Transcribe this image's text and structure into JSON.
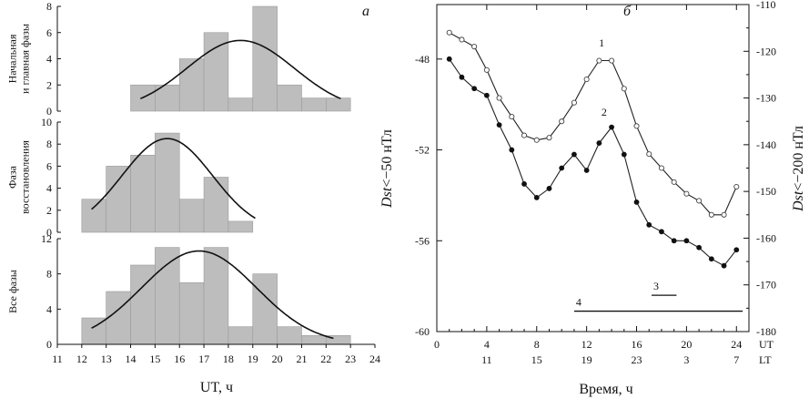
{
  "chart_data": [
    {
      "type": "bar",
      "id": "hist_main",
      "ylabel_lines": [
        "Начальная",
        "и главная фазы"
      ],
      "yticks": [
        0,
        2,
        4,
        6,
        8
      ],
      "ylim": [
        0,
        8
      ],
      "bins_start": [
        14,
        15,
        16,
        17,
        18,
        19,
        20,
        21,
        22
      ],
      "values": [
        2,
        2,
        4,
        6,
        1,
        8,
        2,
        1,
        1
      ],
      "fit_curve": {
        "mean": 18.5,
        "peak": 5.4,
        "sigma": 2.2,
        "x_range": [
          14.4,
          22.6
        ]
      },
      "panel_label": "а"
    },
    {
      "type": "bar",
      "id": "hist_recovery",
      "ylabel_lines": [
        "Фаза",
        "восстановления"
      ],
      "yticks": [
        0,
        2,
        4,
        6,
        8,
        10
      ],
      "ylim": [
        0,
        10
      ],
      "bins_start": [
        12,
        13,
        14,
        15,
        16,
        17,
        18
      ],
      "values": [
        3,
        6,
        7,
        9,
        3,
        5,
        1
      ],
      "fit_curve": {
        "mean": 15.5,
        "peak": 8.5,
        "sigma": 1.85,
        "x_range": [
          12.4,
          19.1
        ]
      }
    },
    {
      "type": "bar",
      "id": "hist_all",
      "ylabel_lines": [
        "Все фазы"
      ],
      "yticks": [
        0,
        4,
        8,
        12
      ],
      "ylim": [
        0,
        12
      ],
      "bins_start": [
        12,
        13,
        14,
        15,
        16,
        17,
        18,
        19,
        20,
        21,
        22
      ],
      "values": [
        3,
        6,
        9,
        11,
        7,
        11,
        2,
        8,
        2,
        1,
        1
      ],
      "fit_curve": {
        "mean": 16.8,
        "peak": 10.6,
        "sigma": 2.35,
        "x_range": [
          12.4,
          22.3
        ]
      },
      "xlabel": "UT, ч",
      "xticks": [
        11,
        12,
        13,
        14,
        15,
        16,
        17,
        18,
        19,
        20,
        21,
        22,
        23,
        24
      ],
      "xlim": [
        11,
        24
      ]
    },
    {
      "type": "line",
      "id": "dst_plot",
      "panel_label": "б",
      "xlim": [
        0,
        25
      ],
      "xticks_ut": [
        0,
        4,
        8,
        12,
        16,
        20,
        24
      ],
      "xticks_lt": [
        "11",
        "15",
        "19",
        "23",
        "3",
        "7"
      ],
      "xticks_lt_pos": [
        4,
        8,
        12,
        16,
        20,
        24
      ],
      "ut_label": "UT",
      "lt_label": "LT",
      "xlabel": "Время, ч",
      "left_axis": {
        "label": "Dst<−50 нТл",
        "label_em": "Dst",
        "label_rest": "<−50 нТл",
        "ticks": [
          -48,
          -52,
          -56,
          -60
        ],
        "ylim": [
          -60,
          -45.6
        ]
      },
      "right_axis": {
        "label": "Dst<−200 нТл",
        "label_em": "Dst",
        "label_rest": "<−200 нТл",
        "ticks": [
          -110,
          -120,
          -130,
          -140,
          -150,
          -160,
          -170,
          -180
        ],
        "ylim": [
          -180,
          -110
        ]
      },
      "series": [
        {
          "name": "1",
          "marker": "open",
          "axis": "right",
          "x": [
            1,
            2,
            3,
            4,
            5,
            6,
            7,
            8,
            9,
            10,
            11,
            12,
            13,
            14,
            15,
            16,
            17,
            18,
            19,
            20,
            21,
            22,
            23,
            24
          ],
          "values": [
            -116,
            -117.5,
            -119,
            -124,
            -130,
            -134,
            -138,
            -139,
            -138.5,
            -135,
            -131,
            -126,
            -122,
            -122,
            -128,
            -136,
            -142,
            -145,
            -148,
            -150.5,
            -152,
            -155,
            -155,
            -149
          ]
        },
        {
          "name": "2",
          "marker": "filled",
          "axis": "left",
          "x": [
            1,
            2,
            3,
            4,
            5,
            6,
            7,
            8,
            9,
            10,
            11,
            12,
            13,
            14,
            15,
            16,
            17,
            18,
            19,
            20,
            21,
            22,
            23,
            24
          ],
          "values": [
            -48.0,
            -48.8,
            -49.3,
            -49.6,
            -50.9,
            -52.0,
            -53.5,
            -54.1,
            -53.7,
            -52.8,
            -52.2,
            -52.9,
            -51.7,
            -51.0,
            -52.2,
            -54.3,
            -55.3,
            -55.6,
            -56.0,
            -56.0,
            -56.3,
            -56.8,
            -57.1,
            -56.4
          ]
        }
      ],
      "annotation_lines": [
        {
          "name": "3",
          "x1": 17.2,
          "x2": 19.2,
          "y": -58.4
        },
        {
          "name": "4",
          "x1": 11.0,
          "x2": 24.5,
          "y": -59.1
        }
      ]
    }
  ]
}
